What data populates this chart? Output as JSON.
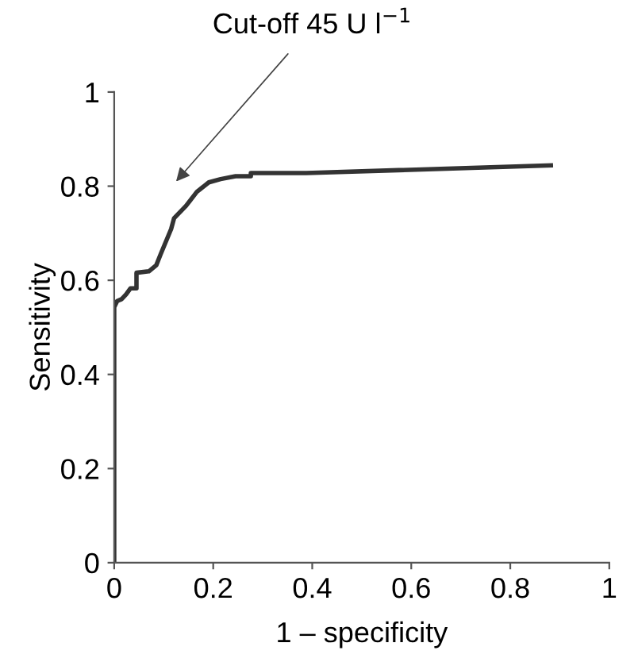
{
  "chart_data": {
    "type": "line",
    "xlabel": "1 – specificity",
    "ylabel": "Sensitivity",
    "x": [
      0,
      0,
      0.006,
      0.015,
      0.024,
      0.033,
      0.045,
      0.045,
      0.07,
      0.085,
      0.094,
      0.115,
      0.121,
      0.145,
      0.167,
      0.191,
      0.215,
      0.245,
      0.276,
      0.276,
      0.388,
      0.882
    ],
    "series": [
      {
        "color": "#333333",
        "values": [
          0,
          0.543,
          0.556,
          0.56,
          0.57,
          0.583,
          0.583,
          0.616,
          0.619,
          0.632,
          0.656,
          0.709,
          0.732,
          0.758,
          0.788,
          0.808,
          0.815,
          0.821,
          0.821,
          0.828,
          0.828,
          0.844
        ]
      }
    ],
    "annotations": [
      "Cut-off 45 U l$^{−1}$"
    ],
    "xlim": [
      0,
      1
    ],
    "ylim": [
      0,
      1
    ],
    "xticks": [
      0,
      0.2,
      0.4,
      0.6,
      0.8,
      1
    ],
    "yticks": [
      0,
      0.2,
      0.4,
      0.6,
      0.8,
      1
    ],
    "marker": "none",
    "line_style": "solid"
  }
}
